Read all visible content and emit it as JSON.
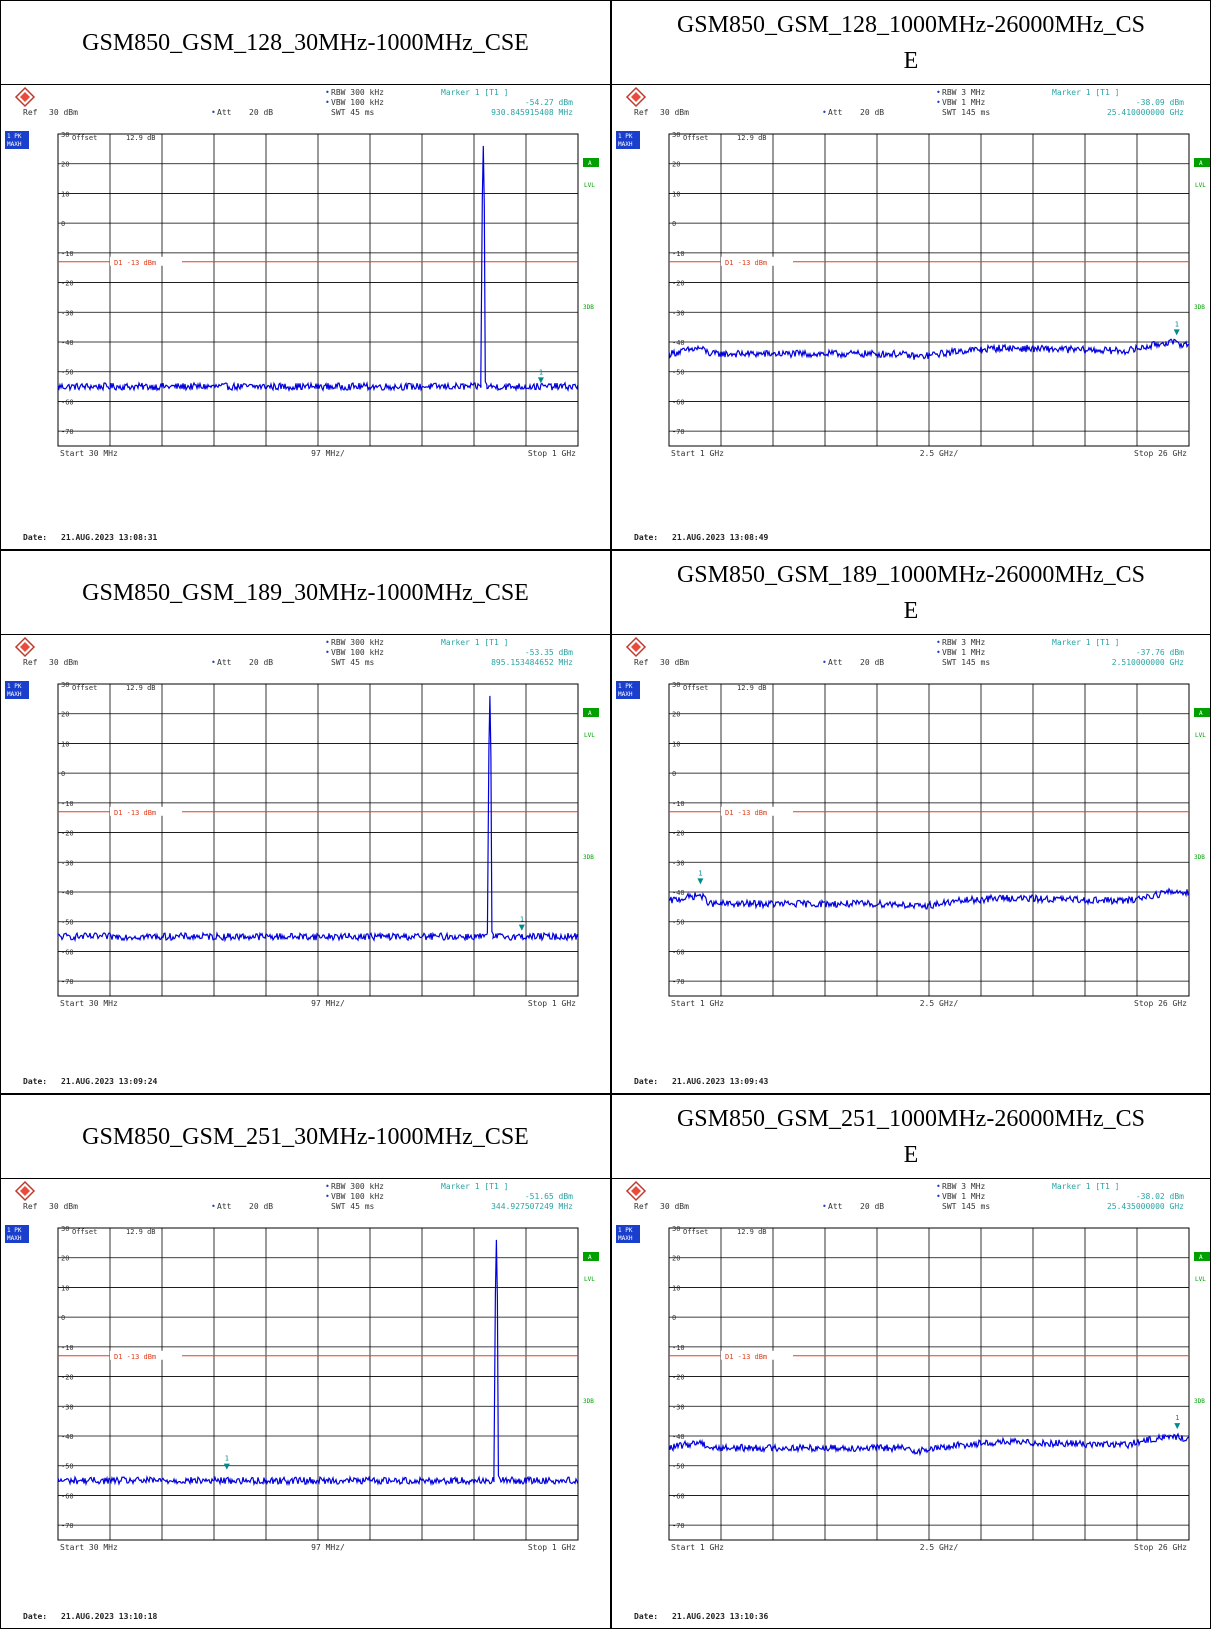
{
  "colors": {
    "trace": "#0000dd",
    "limit_line": "#e04020",
    "marker": "#008b8b",
    "grid": "#000000",
    "badge_green": "#00a000",
    "badge_blue": "#1a3fcc",
    "header_info": "#2aa4a4"
  },
  "common": {
    "ref_label": "Ref",
    "ref_value": "30 dBm",
    "att_label": "Att",
    "att_value": "20 dB",
    "offset_label": "Offset",
    "offset_value": "12.9 dB",
    "trace_badge_line1": "1 PK",
    "trace_badge_line2": "MAXH",
    "a_badge": "A",
    "lvl_label": "LVL",
    "three_db_label": "3DB",
    "limit_label": "D1  -13 dBm",
    "date_label": "Date:",
    "logo_icon": "rohde-schwarz-logo"
  },
  "chart_data": [
    {
      "type": "line",
      "title": "GSM850_GSM_128_30MHz-1000MHz_CSE",
      "rbw": "RBW  300 kHz",
      "vbw": "VBW  100 kHz",
      "swt": "SWT  45 ms",
      "marker_title": "Marker 1 [T1 ]",
      "marker_level": "-54.27 dBm",
      "marker_freq": "930.845915408 MHz",
      "start_label": "Start  30 MHz",
      "span_label": "97 MHz/",
      "stop_label": "Stop  1 GHz",
      "date": "21.AUG.2023  13:08:31",
      "x_start": 30,
      "x_stop": 1000,
      "x_unit": "MHz",
      "ylim": [
        -75,
        30
      ],
      "y_ticks": [
        30,
        20,
        10,
        0,
        -10,
        -20,
        -30,
        -40,
        -50,
        -60,
        -70
      ],
      "limit_dbm": -13,
      "noise_floor_dbm": -55,
      "carrier": {
        "freq": 824.2,
        "level_dbm": 26
      },
      "marker_point": {
        "freq": 930.8,
        "level_dbm": -54.27
      }
    },
    {
      "type": "line",
      "title": "GSM850_GSM_128_1000MHz-26000MHz_CSE",
      "rbw": "RBW  3 MHz",
      "vbw": "VBW  1 MHz",
      "swt": "SWT  145 ms",
      "marker_title": "Marker 1 [T1 ]",
      "marker_level": "-38.09 dBm",
      "marker_freq": "25.410000000 GHz",
      "start_label": "Start  1 GHz",
      "span_label": "2.5 GHz/",
      "stop_label": "Stop  26 GHz",
      "date": "21.AUG.2023  13:08:49",
      "x_start": 1,
      "x_stop": 26,
      "x_unit": "GHz",
      "ylim": [
        -75,
        30
      ],
      "y_ticks": [
        30,
        20,
        10,
        0,
        -10,
        -20,
        -30,
        -40,
        -50,
        -60,
        -70
      ],
      "limit_dbm": -13,
      "noise_profile": [
        [
          1,
          -44
        ],
        [
          2.5,
          -42
        ],
        [
          3,
          -44
        ],
        [
          12,
          -44
        ],
        [
          13,
          -45
        ],
        [
          15,
          -43
        ],
        [
          17,
          -42
        ],
        [
          23,
          -43
        ],
        [
          25,
          -40
        ],
        [
          26,
          -41
        ]
      ],
      "marker_point": {
        "freq": 25.41,
        "level_dbm": -38.09
      }
    },
    {
      "type": "line",
      "title": "GSM850_GSM_189_30MHz-1000MHz_CSE",
      "rbw": "RBW  300 kHz",
      "vbw": "VBW  100 kHz",
      "swt": "SWT  45 ms",
      "marker_title": "Marker 1 [T1 ]",
      "marker_level": "-53.35 dBm",
      "marker_freq": "895.153484652 MHz",
      "start_label": "Start  30 MHz",
      "span_label": "97 MHz/",
      "stop_label": "Stop  1 GHz",
      "date": "21.AUG.2023  13:09:24",
      "x_start": 30,
      "x_stop": 1000,
      "x_unit": "MHz",
      "ylim": [
        -75,
        30
      ],
      "y_ticks": [
        30,
        20,
        10,
        0,
        -10,
        -20,
        -30,
        -40,
        -50,
        -60,
        -70
      ],
      "limit_dbm": -13,
      "noise_floor_dbm": -55,
      "carrier": {
        "freq": 836.6,
        "level_dbm": 26
      },
      "marker_point": {
        "freq": 895.2,
        "level_dbm": -53.35
      }
    },
    {
      "type": "line",
      "title": "GSM850_GSM_189_1000MHz-26000MHz_CSE",
      "rbw": "RBW  3 MHz",
      "vbw": "VBW  1 MHz",
      "swt": "SWT  145 ms",
      "marker_title": "Marker 1 [T1 ]",
      "marker_level": "-37.76 dBm",
      "marker_freq": "2.510000000 GHz",
      "start_label": "Start  1 GHz",
      "span_label": "2.5 GHz/",
      "stop_label": "Stop  26 GHz",
      "date": "21.AUG.2023  13:09:43",
      "x_start": 1,
      "x_stop": 26,
      "x_unit": "GHz",
      "ylim": [
        -75,
        30
      ],
      "y_ticks": [
        30,
        20,
        10,
        0,
        -10,
        -20,
        -30,
        -40,
        -50,
        -60,
        -70
      ],
      "limit_dbm": -13,
      "noise_profile": [
        [
          1,
          -43
        ],
        [
          2.5,
          -41
        ],
        [
          3,
          -44
        ],
        [
          12,
          -44
        ],
        [
          13,
          -45
        ],
        [
          15,
          -43
        ],
        [
          17,
          -42
        ],
        [
          23,
          -43
        ],
        [
          25,
          -40
        ],
        [
          26,
          -40
        ]
      ],
      "marker_point": {
        "freq": 2.51,
        "level_dbm": -37.76
      }
    },
    {
      "type": "line",
      "title": "GSM850_GSM_251_30MHz-1000MHz_CSE",
      "rbw": "RBW  300 kHz",
      "vbw": "VBW  100 kHz",
      "swt": "SWT  45 ms",
      "marker_title": "Marker 1 [T1 ]",
      "marker_level": "-51.65 dBm",
      "marker_freq": "344.927507249 MHz",
      "start_label": "Start  30 MHz",
      "span_label": "97 MHz/",
      "stop_label": "Stop  1 GHz",
      "date": "21.AUG.2023  13:10:18",
      "x_start": 30,
      "x_stop": 1000,
      "x_unit": "MHz",
      "ylim": [
        -75,
        30
      ],
      "y_ticks": [
        30,
        20,
        10,
        0,
        -10,
        -20,
        -30,
        -40,
        -50,
        -60,
        -70
      ],
      "limit_dbm": -13,
      "noise_floor_dbm": -55,
      "carrier": {
        "freq": 848.8,
        "level_dbm": 26
      },
      "marker_point": {
        "freq": 344.9,
        "level_dbm": -51.65
      }
    },
    {
      "type": "line",
      "title": "GSM850_GSM_251_1000MHz-26000MHz_CSE",
      "rbw": "RBW  3 MHz",
      "vbw": "VBW  1 MHz",
      "swt": "SWT  145 ms",
      "marker_title": "Marker 1 [T1 ]",
      "marker_level": "-38.02 dBm",
      "marker_freq": "25.435000000 GHz",
      "start_label": "Start  1 GHz",
      "span_label": "2.5 GHz/",
      "stop_label": "Stop  26 GHz",
      "date": "21.AUG.2023  13:10:36",
      "x_start": 1,
      "x_stop": 26,
      "x_unit": "GHz",
      "ylim": [
        -75,
        30
      ],
      "y_ticks": [
        30,
        20,
        10,
        0,
        -10,
        -20,
        -30,
        -40,
        -50,
        -60,
        -70
      ],
      "limit_dbm": -13,
      "noise_profile": [
        [
          1,
          -44
        ],
        [
          2.5,
          -42
        ],
        [
          3,
          -44
        ],
        [
          12,
          -44
        ],
        [
          13,
          -45
        ],
        [
          15,
          -43
        ],
        [
          17,
          -42
        ],
        [
          23,
          -43
        ],
        [
          25,
          -40
        ],
        [
          26,
          -41
        ]
      ],
      "marker_point": {
        "freq": 25.435,
        "level_dbm": -38.02
      }
    }
  ]
}
